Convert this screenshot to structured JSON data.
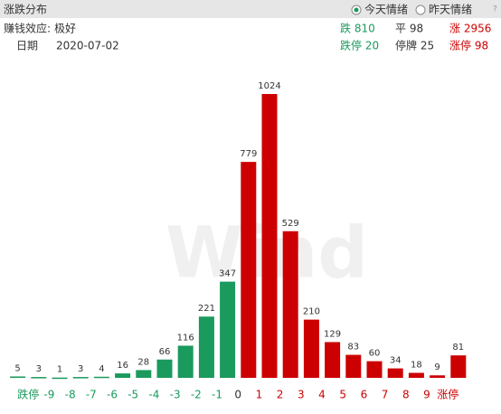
{
  "header": {
    "title": "涨跌分布",
    "radio_today": "今天情绪",
    "radio_yesterday": "昨天情绪",
    "help": "?"
  },
  "info": {
    "effect_label": "赚钱效应:",
    "effect_value": "极好",
    "date_label": "日期",
    "date_value": "2020-07-02"
  },
  "stats": {
    "down": "跌 810",
    "flat": "平 98",
    "up": "涨 2956",
    "limit_down": "跌停 20",
    "suspended": "停牌 25",
    "limit_up": "涨停 98"
  },
  "chart_data": {
    "type": "bar",
    "watermark": "Wind",
    "tick_labels": [
      "跌停",
      "-9",
      "-8",
      "-7",
      "-6",
      "-5",
      "-4",
      "-3",
      "-2",
      "-1",
      "0",
      "1",
      "2",
      "3",
      "4",
      "5",
      "6",
      "7",
      "8",
      "9",
      "涨停"
    ],
    "tick_colors": [
      "#1a9a5c",
      "#1a9a5c",
      "#1a9a5c",
      "#1a9a5c",
      "#1a9a5c",
      "#1a9a5c",
      "#1a9a5c",
      "#1a9a5c",
      "#1a9a5c",
      "#1a9a5c",
      "#333333",
      "#cc0000",
      "#cc0000",
      "#cc0000",
      "#cc0000",
      "#cc0000",
      "#cc0000",
      "#cc0000",
      "#cc0000",
      "#cc0000",
      "#cc0000"
    ],
    "values": [
      5,
      3,
      1,
      3,
      4,
      16,
      28,
      66,
      116,
      221,
      347,
      779,
      1024,
      529,
      210,
      129,
      83,
      60,
      34,
      18,
      9,
      81
    ],
    "colors": [
      "#1a9a5c",
      "#1a9a5c",
      "#1a9a5c",
      "#1a9a5c",
      "#1a9a5c",
      "#1a9a5c",
      "#1a9a5c",
      "#1a9a5c",
      "#1a9a5c",
      "#1a9a5c",
      "#1a9a5c",
      "#cc0000",
      "#cc0000",
      "#cc0000",
      "#cc0000",
      "#cc0000",
      "#cc0000",
      "#cc0000",
      "#cc0000",
      "#cc0000",
      "#cc0000",
      "#cc0000"
    ],
    "ylim": [
      0,
      1024
    ]
  }
}
